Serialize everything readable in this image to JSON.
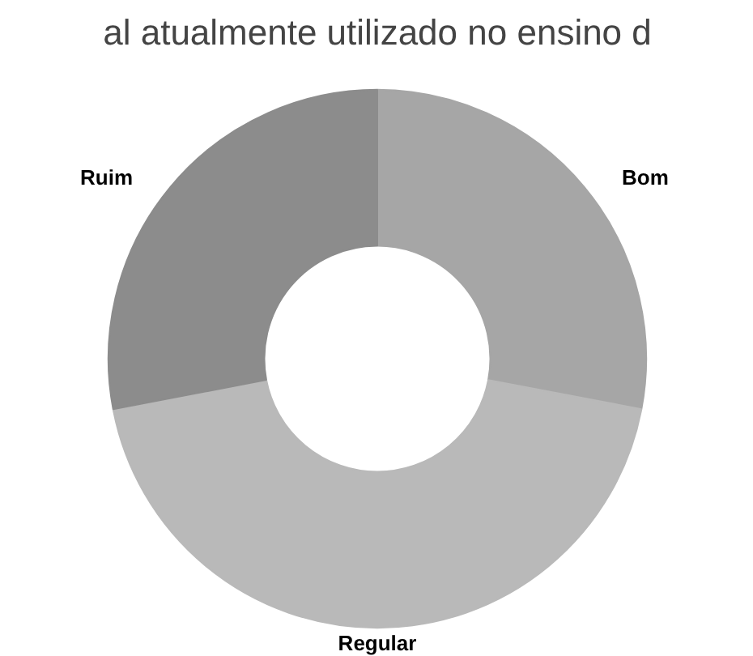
{
  "chart_data": {
    "type": "donut",
    "title": "al atualmente utilizado no ensino d",
    "categories": [
      "Bom",
      "Regular",
      "Ruim"
    ],
    "values": [
      28,
      44,
      28
    ],
    "colors": [
      "#a6a6a6",
      "#b9b9b9",
      "#8c8c8c"
    ]
  }
}
